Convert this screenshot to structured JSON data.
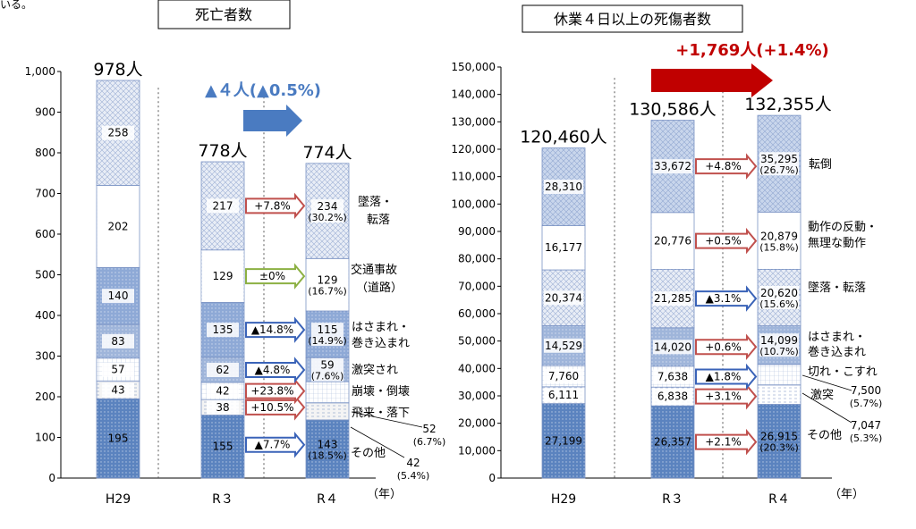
{
  "page": {
    "corner_text": "いる。"
  },
  "chart_data": [
    {
      "type": "bar",
      "stacked": true,
      "title": "死亡者数",
      "xlabel": "（年）",
      "ylabel": "",
      "ylim": [
        0,
        1000
      ],
      "yticks": [
        0,
        100,
        200,
        300,
        400,
        500,
        600,
        700,
        800,
        900,
        1000
      ],
      "ytick_labels": [
        "0",
        "100",
        "200",
        "300",
        "400",
        "500",
        "600",
        "700",
        "800",
        "900",
        "1,000"
      ],
      "categories": [
        "H29",
        "R３",
        "R４"
      ],
      "totals_labels": [
        "978人",
        "778人",
        "774人"
      ],
      "change_label": "▲４人(▲0.5%)",
      "series": [
        {
          "name": "その他",
          "values": [
            195,
            155,
            143
          ],
          "labels": [
            "195",
            "155",
            "143"
          ],
          "share": "(18.5%)",
          "change": "▲7.7%",
          "change_color": "#3a63b8",
          "fill": "#5b83bf",
          "pattern": "dots"
        },
        {
          "name": "飛来・落下",
          "values": [
            43,
            38,
            42
          ],
          "labels": [
            "43",
            "38",
            ""
          ],
          "share": "",
          "change": "+10.5%",
          "change_color": "#c0504d",
          "fill": "#f4f4f4",
          "pattern": "dash"
        },
        {
          "name": "崩壊・倒壊",
          "values": [
            57,
            42,
            52
          ],
          "labels": [
            "57",
            "42",
            ""
          ],
          "share": "",
          "change": "+23.8%",
          "change_color": "#c0504d",
          "fill": "#ffffff",
          "pattern": "grid"
        },
        {
          "name": "激突され",
          "values": [
            83,
            62,
            59
          ],
          "labels": [
            "83",
            "62",
            "59"
          ],
          "share": "(7.6%)",
          "change": "▲4.8%",
          "change_color": "#3a63b8",
          "fill": "#9fb5da",
          "pattern": "dots"
        },
        {
          "name": "はさまれ・巻き込まれ",
          "values": [
            140,
            135,
            115
          ],
          "labels": [
            "140",
            "135",
            "115"
          ],
          "share": "(14.9%)",
          "change": "▲14.8%",
          "change_color": "#3a63b8",
          "fill": "#8ea9d6",
          "pattern": "dots"
        },
        {
          "name": "交通事故（道路）",
          "values": [
            202,
            129,
            129
          ],
          "labels": [
            "202",
            "129",
            "129"
          ],
          "share": "(16.7%)",
          "change": "±0%",
          "change_color": "#8cb043",
          "fill": "#ffffff",
          "pattern": "dots"
        },
        {
          "name": "墜落・転落",
          "values": [
            258,
            217,
            234
          ],
          "labels": [
            "258",
            "217",
            "234"
          ],
          "share": "(30.2%)",
          "change": "+7.8%",
          "change_color": "#c0504d",
          "fill": "#e8edf6",
          "pattern": "cross"
        }
      ],
      "outside_labels": [
        {
          "value": "52",
          "share": "(6.7%)"
        },
        {
          "value": "42",
          "share": "(5.4%)"
        }
      ],
      "right_labels": [
        "墜落・",
        "転落",
        "交通事故",
        "（道路）",
        "はさまれ・",
        "巻き込まれ",
        "激突され",
        "崩壊・倒壊",
        "飛来・落下",
        "その他"
      ]
    },
    {
      "type": "bar",
      "stacked": true,
      "title": "休業４日以上の死傷者数",
      "xlabel": "（年）",
      "ylabel": "",
      "ylim": [
        0,
        150000
      ],
      "yticks": [
        0,
        10000,
        20000,
        30000,
        40000,
        50000,
        60000,
        70000,
        80000,
        90000,
        100000,
        110000,
        120000,
        130000,
        140000,
        150000
      ],
      "ytick_labels": [
        "0",
        "10,000",
        "20,000",
        "30,000",
        "40,000",
        "50,000",
        "60,000",
        "70,000",
        "80,000",
        "90,000",
        "100,000",
        "110,000",
        "120,000",
        "130,000",
        "140,000",
        "150,000"
      ],
      "categories": [
        "H29",
        "R３",
        "R４"
      ],
      "totals_labels": [
        "120,460人",
        "130,586人",
        "132,355人"
      ],
      "change_label": "+1,769人(+1.4%)",
      "series": [
        {
          "name": "その他",
          "values": [
            27199,
            26357,
            26915
          ],
          "labels": [
            "27,199",
            "26,357",
            "26,915"
          ],
          "share": "(20.3%)",
          "change": "+2.1%",
          "change_color": "#c0504d",
          "fill": "#5b83bf",
          "pattern": "dots"
        },
        {
          "name": "激突",
          "values": [
            6111,
            6838,
            7047
          ],
          "labels": [
            "6,111",
            "6,838",
            ""
          ],
          "share": "",
          "change": "+3.1%",
          "change_color": "#c0504d",
          "fill": "#ffffff",
          "pattern": "dash"
        },
        {
          "name": "切れ・こすれ",
          "values": [
            7760,
            7638,
            7500
          ],
          "labels": [
            "7,760",
            "7,638",
            ""
          ],
          "share": "",
          "change": "▲1.8%",
          "change_color": "#3a63b8",
          "fill": "#ffffff",
          "pattern": "grid"
        },
        {
          "name": "はさまれ・巻き込まれ",
          "values": [
            14529,
            14020,
            14099
          ],
          "labels": [
            "14,529",
            "14,020",
            "14,099"
          ],
          "share": "(10.7%)",
          "change": "+0.6%",
          "change_color": "#c0504d",
          "fill": "#9fb5da",
          "pattern": "dots"
        },
        {
          "name": "墜落・転落",
          "values": [
            20374,
            21285,
            20620
          ],
          "labels": [
            "20,374",
            "21,285",
            "20,620"
          ],
          "share": "(15.6%)",
          "change": "▲3.1%",
          "change_color": "#3a63b8",
          "fill": "#e8edf6",
          "pattern": "cross"
        },
        {
          "name": "動作の反動・無理な動作",
          "values": [
            16177,
            20776,
            20879
          ],
          "labels": [
            "16,177",
            "20,776",
            "20,879"
          ],
          "share": "(15.8%)",
          "change": "+0.5%",
          "change_color": "#c0504d",
          "fill": "#ffffff",
          "pattern": "dots"
        },
        {
          "name": "転倒",
          "values": [
            28310,
            33672,
            35295
          ],
          "labels": [
            "28,310",
            "33,672",
            "35,295"
          ],
          "share": "(26.7%)",
          "change": "+4.8%",
          "change_color": "#c0504d",
          "fill": "#c9d6ec",
          "pattern": "cross"
        }
      ],
      "outside_labels": [
        {
          "value": "7,500",
          "share": "(5.7%)"
        },
        {
          "value": "7,047",
          "share": "(5.3%)"
        }
      ],
      "right_labels": [
        "転倒",
        "動作の反動・",
        "無理な動作",
        "墜落・転落",
        "はさまれ・",
        "巻き込まれ",
        "切れ・こすれ",
        "激突",
        "その他"
      ]
    }
  ]
}
